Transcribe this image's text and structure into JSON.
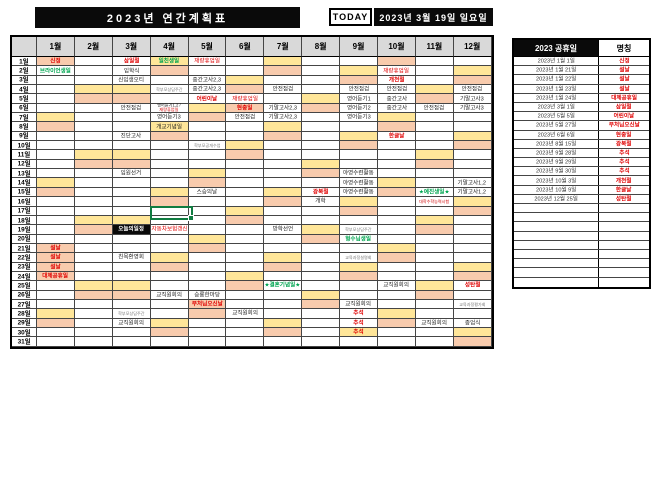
{
  "header": {
    "title": "2023년 연간계획표",
    "today_label": "TODAY",
    "today_date": "2023년 3월 19일 일요일"
  },
  "calendar": {
    "day_suffix": "일",
    "month_labels": [
      "1월",
      "2월",
      "3월",
      "4월",
      "5월",
      "6월",
      "7월",
      "8월",
      "9월",
      "10월",
      "11월",
      "12월"
    ],
    "num_days": 31,
    "saturdays": {
      "1": [
        7,
        14,
        21,
        28
      ],
      "2": [
        4,
        11,
        18,
        25
      ],
      "3": [
        4,
        11,
        18,
        25
      ],
      "4": [
        1,
        8,
        15,
        22,
        29
      ],
      "5": [
        6,
        13,
        20,
        27
      ],
      "6": [
        3,
        10,
        17,
        24
      ],
      "7": [
        1,
        8,
        15,
        22,
        29
      ],
      "8": [
        5,
        12,
        19,
        26
      ],
      "9": [
        2,
        9,
        16,
        23,
        30
      ],
      "10": [
        7,
        14,
        21,
        28
      ],
      "11": [
        4,
        11,
        18,
        25
      ],
      "12": [
        2,
        9,
        16,
        23,
        30
      ]
    },
    "sundays": {
      "1": [
        1,
        8,
        15,
        22,
        29
      ],
      "2": [
        5,
        12,
        19,
        26
      ],
      "3": [
        5,
        12,
        19,
        26
      ],
      "4": [
        2,
        9,
        16,
        23,
        30
      ],
      "5": [
        7,
        14,
        21,
        28
      ],
      "6": [
        4,
        11,
        18,
        25
      ],
      "7": [
        2,
        9,
        16,
        23,
        30
      ],
      "8": [
        6,
        13,
        20,
        27
      ],
      "9": [
        3,
        10,
        17,
        24
      ],
      "10": [
        1,
        8,
        15,
        22,
        29
      ],
      "11": [
        5,
        12,
        19,
        26
      ],
      "12": [
        3,
        10,
        17,
        24,
        31
      ]
    },
    "entries": [
      {
        "month": 1,
        "day": 1,
        "text": "신정",
        "type": "holiday",
        "bg": "salmon"
      },
      {
        "month": 1,
        "day": 2,
        "text": "브라이언생일",
        "type": "green"
      },
      {
        "month": 1,
        "day": 21,
        "text": "설날",
        "type": "holiday",
        "bg": "salmon"
      },
      {
        "month": 1,
        "day": 22,
        "text": "설날",
        "type": "holiday",
        "bg": "salmon"
      },
      {
        "month": 1,
        "day": 23,
        "text": "설날",
        "type": "holiday",
        "bg": "salmon"
      },
      {
        "month": 1,
        "day": 24,
        "text": "대체공휴일",
        "type": "holiday",
        "bg": "salmon"
      },
      {
        "month": 3,
        "day": 1,
        "text": "삼일절",
        "type": "holiday"
      },
      {
        "month": 3,
        "day": 2,
        "text": "입학식",
        "type": "normal"
      },
      {
        "month": 3,
        "day": 3,
        "text": "신입생오티",
        "type": "normal"
      },
      {
        "month": 3,
        "day": 6,
        "text": "안전점검",
        "type": "normal"
      },
      {
        "month": 3,
        "day": 9,
        "text": "진단고사",
        "type": "normal"
      },
      {
        "month": 3,
        "day": 13,
        "text": "임원선거",
        "type": "normal"
      },
      {
        "month": 3,
        "day": 19,
        "text": "오늘의일정",
        "type": "today",
        "bg": "today"
      },
      {
        "month": 3,
        "day": 22,
        "text": "친목환영회",
        "type": "normal"
      },
      {
        "month": 3,
        "day": 28,
        "text": "학부모상담주간",
        "type": "tiny"
      },
      {
        "month": 3,
        "day": 29,
        "text": "교직원회의",
        "type": "normal"
      },
      {
        "month": 4,
        "day": 1,
        "text": "일친생일",
        "type": "green"
      },
      {
        "month": 4,
        "day": 4,
        "text": "학부모상담주간",
        "type": "tiny"
      },
      {
        "month": 4,
        "day": 6,
        "text": "영어듣기1,2 /",
        "text2": "재량휴업일",
        "type": "multiline"
      },
      {
        "month": 4,
        "day": 7,
        "text": "영어듣기3",
        "type": "normal"
      },
      {
        "month": 4,
        "day": 8,
        "text": "개교기념일",
        "type": "normal"
      },
      {
        "month": 4,
        "day": 19,
        "text": "자동차보험갱신",
        "type": "red"
      },
      {
        "month": 4,
        "day": 26,
        "text": "교직원회의",
        "type": "normal"
      },
      {
        "month": 5,
        "day": 1,
        "text": "재량휴업일",
        "type": "red"
      },
      {
        "month": 5,
        "day": 3,
        "text": "중간고사2,3",
        "type": "normal"
      },
      {
        "month": 5,
        "day": 4,
        "text": "중간고사2,3",
        "type": "normal"
      },
      {
        "month": 5,
        "day": 5,
        "text": "어린이날",
        "type": "holiday"
      },
      {
        "month": 5,
        "day": 10,
        "text": "학부모공개수업",
        "type": "tiny"
      },
      {
        "month": 5,
        "day": 15,
        "text": "스승의날",
        "type": "normal"
      },
      {
        "month": 5,
        "day": 26,
        "text": "승룡한마당",
        "type": "normal"
      },
      {
        "month": 5,
        "day": 27,
        "text": "부처님오신날",
        "type": "holiday",
        "bg": "salmon"
      },
      {
        "month": 6,
        "day": 5,
        "text": "재량휴업일",
        "type": "red"
      },
      {
        "month": 6,
        "day": 6,
        "text": "현충일",
        "type": "holiday",
        "bg": "salmon"
      },
      {
        "month": 6,
        "day": 7,
        "text": "안전점검",
        "type": "normal"
      },
      {
        "month": 6,
        "day": 28,
        "text": "교직원회의",
        "type": "normal"
      },
      {
        "month": 7,
        "day": 4,
        "text": "안전점검",
        "type": "normal"
      },
      {
        "month": 7,
        "day": 6,
        "text": "기말고사2,3",
        "type": "normal"
      },
      {
        "month": 7,
        "day": 7,
        "text": "기말고사2,3",
        "type": "normal"
      },
      {
        "month": 7,
        "day": 19,
        "text": "방학선언",
        "type": "normal"
      },
      {
        "month": 7,
        "day": 25,
        "text": "★결혼기념일★",
        "type": "green"
      },
      {
        "month": 8,
        "day": 15,
        "text": "광복절",
        "type": "holiday"
      },
      {
        "month": 8,
        "day": 16,
        "text": "개학",
        "type": "normal"
      },
      {
        "month": 9,
        "day": 4,
        "text": "안전점검",
        "type": "normal"
      },
      {
        "month": 9,
        "day": 5,
        "text": "영어듣기1",
        "type": "normal"
      },
      {
        "month": 9,
        "day": 6,
        "text": "영어듣기2",
        "type": "normal"
      },
      {
        "month": 9,
        "day": 7,
        "text": "영어듣기3",
        "type": "normal"
      },
      {
        "month": 9,
        "day": 13,
        "text": "야영수련활동",
        "type": "normal"
      },
      {
        "month": 9,
        "day": 14,
        "text": "야영수련활동",
        "type": "normal"
      },
      {
        "month": 9,
        "day": 15,
        "text": "야영수련활동",
        "type": "normal"
      },
      {
        "month": 9,
        "day": 19,
        "text": "학부모상담주간",
        "type": "tiny"
      },
      {
        "month": 9,
        "day": 20,
        "text": "형수님생일",
        "type": "green"
      },
      {
        "month": 9,
        "day": 22,
        "text": "교육과정설명회",
        "type": "tiny"
      },
      {
        "month": 9,
        "day": 27,
        "text": "교직원회의",
        "type": "normal"
      },
      {
        "month": 9,
        "day": 28,
        "text": "추석",
        "type": "holiday"
      },
      {
        "month": 9,
        "day": 29,
        "text": "추석",
        "type": "holiday"
      },
      {
        "month": 9,
        "day": 30,
        "text": "추석",
        "type": "holiday"
      },
      {
        "month": 10,
        "day": 2,
        "text": "재량휴업일",
        "type": "red"
      },
      {
        "month": 10,
        "day": 3,
        "text": "개천절",
        "type": "holiday"
      },
      {
        "month": 10,
        "day": 4,
        "text": "안전점검",
        "type": "normal"
      },
      {
        "month": 10,
        "day": 5,
        "text": "중간고사",
        "type": "normal"
      },
      {
        "month": 10,
        "day": 6,
        "text": "중간고사",
        "type": "normal"
      },
      {
        "month": 10,
        "day": 9,
        "text": "한글날",
        "type": "holiday"
      },
      {
        "month": 10,
        "day": 25,
        "text": "교직원회의",
        "type": "normal"
      },
      {
        "month": 11,
        "day": 6,
        "text": "안전점검",
        "type": "normal"
      },
      {
        "month": 11,
        "day": 15,
        "text": "★예진생일★",
        "type": "green"
      },
      {
        "month": 11,
        "day": 16,
        "text": "대학수학능력시험",
        "type": "tiny-red"
      },
      {
        "month": 11,
        "day": 29,
        "text": "교직원회의",
        "type": "normal"
      },
      {
        "month": 12,
        "day": 4,
        "text": "안전점검",
        "type": "normal"
      },
      {
        "month": 12,
        "day": 5,
        "text": "기말고사3",
        "type": "normal"
      },
      {
        "month": 12,
        "day": 6,
        "text": "기말고사3",
        "type": "normal"
      },
      {
        "month": 12,
        "day": 14,
        "text": "기말고사1,2",
        "type": "normal"
      },
      {
        "month": 12,
        "day": 15,
        "text": "기말고사1,2",
        "type": "normal"
      },
      {
        "month": 12,
        "day": 25,
        "text": "성탄절",
        "type": "holiday"
      },
      {
        "month": 12,
        "day": 27,
        "text": "교육과정평가회",
        "type": "tiny"
      },
      {
        "month": 12,
        "day": 29,
        "text": "종업식",
        "type": "normal"
      }
    ],
    "selected_cell": {
      "month": 4,
      "day": 17
    }
  },
  "holidays_panel": {
    "header_date": "2023 공휴일",
    "header_name": "명칭",
    "rows": [
      {
        "date": "2023년 1월 1일",
        "name": "신정"
      },
      {
        "date": "2023년 1월 21일",
        "name": "설날"
      },
      {
        "date": "2023년 1월 22일",
        "name": "설날"
      },
      {
        "date": "2023년 1월 23일",
        "name": "설날"
      },
      {
        "date": "2023년 1월 24일",
        "name": "대체공휴일"
      },
      {
        "date": "2023년 3월 1일",
        "name": "삼일절"
      },
      {
        "date": "2023년 5월 5일",
        "name": "어린이날"
      },
      {
        "date": "2023년 5월 27일",
        "name": "부처님오신날"
      },
      {
        "date": "2023년 6월 6일",
        "name": "현충일"
      },
      {
        "date": "2023년 8월 15일",
        "name": "광복절"
      },
      {
        "date": "2023년 9월 28일",
        "name": "추석"
      },
      {
        "date": "2023년 9월 29일",
        "name": "추석"
      },
      {
        "date": "2023년 9월 30일",
        "name": "추석"
      },
      {
        "date": "2023년 10월 3일",
        "name": "개천절"
      },
      {
        "date": "2023년 10월 9일",
        "name": "한글날"
      },
      {
        "date": "2023년 12월 25일",
        "name": "성탄절"
      }
    ],
    "empty_rows": 9
  },
  "colors": {
    "saturday_bg": "#ffe699",
    "sunday_bg": "#f8cbad",
    "holiday_text": "#e00000",
    "birthday_text": "#00a550",
    "banner_bg": "#0a0a0a",
    "header_row_bg": "#d9d9d9",
    "selection_border": "#107c41"
  }
}
